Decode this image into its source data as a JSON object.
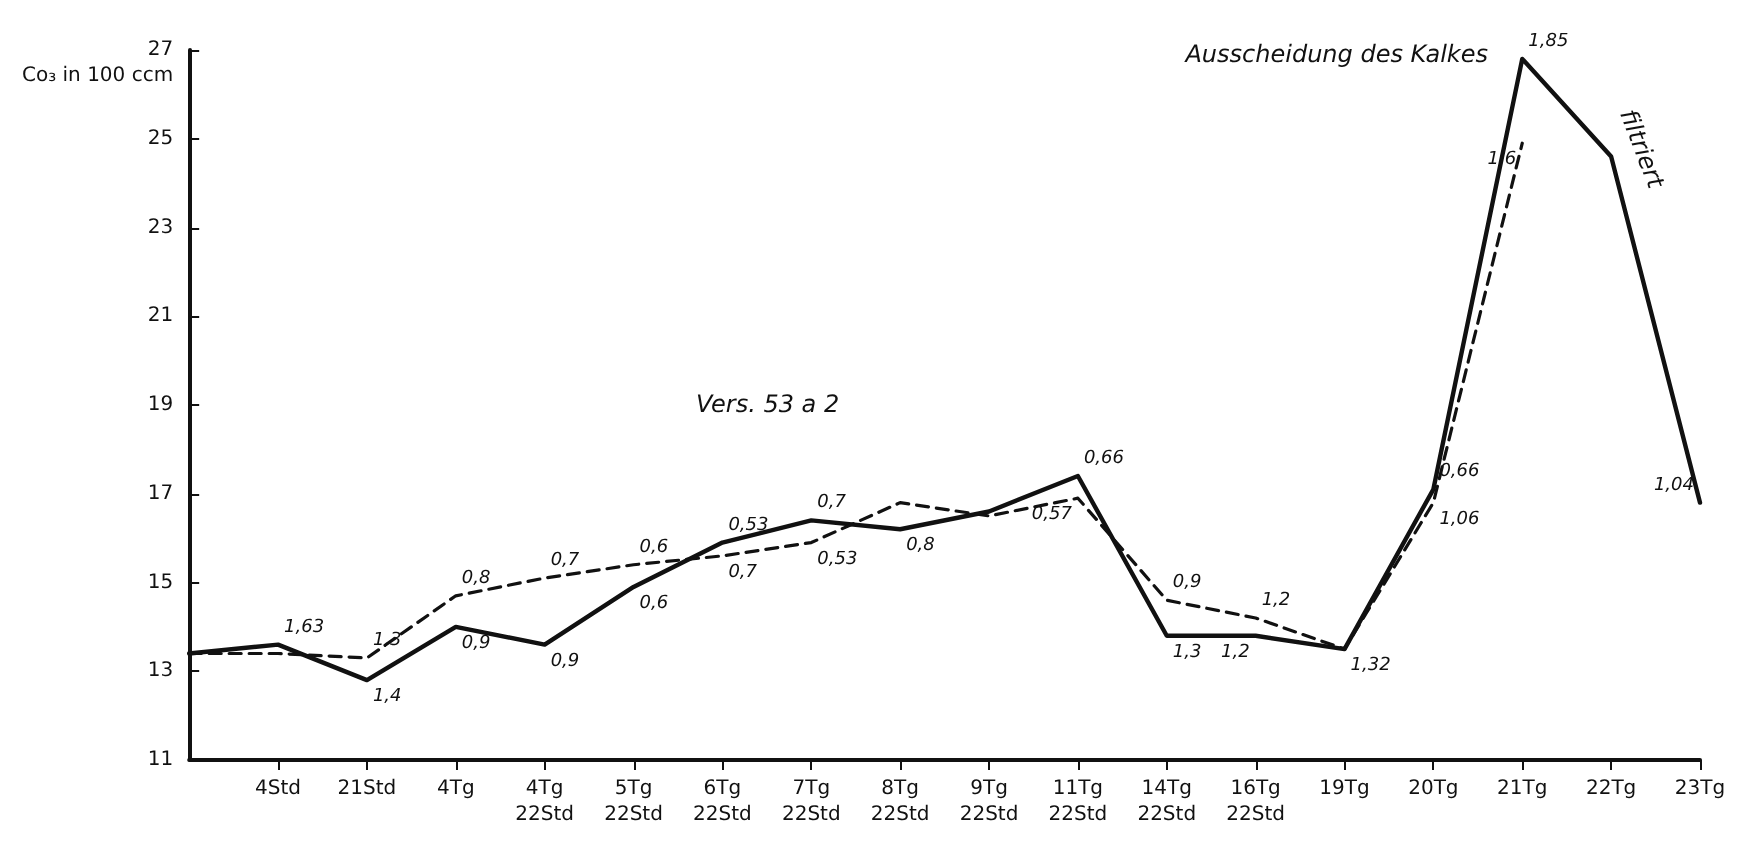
{
  "chart_data": {
    "type": "line",
    "title": "Ausscheidung des Kalkes",
    "ylabel": "Co₃ in 100 ccm",
    "annotations": [
      "Vers. 53 a 2",
      "filtriert",
      {
        "text": "1,63",
        "x": "4Std",
        "y": 13.6
      },
      {
        "text": "1,4",
        "x": "21Std",
        "y": 12.8
      },
      {
        "text": "1,3",
        "x": "21Std",
        "y": 13.3
      },
      {
        "text": "0,9",
        "x": "4Tg",
        "y": 14.0
      },
      {
        "text": "0,8",
        "x": "4Tg",
        "y": 14.7
      },
      {
        "text": "0,9",
        "x": "4Tg\n22Std",
        "y": 13.6
      },
      {
        "text": "0,7",
        "x": "4Tg\n22Std",
        "y": 15.1
      },
      {
        "text": "0,6",
        "x": "5Tg\n22Std",
        "y": 14.9
      },
      {
        "text": "0,6",
        "x": "5Tg\n22Std",
        "y": 15.4
      },
      {
        "text": "0,53",
        "x": "6Tg\n22Std",
        "y": 15.9
      },
      {
        "text": "0,7",
        "x": "6Tg\n22Std",
        "y": 15.6
      },
      {
        "text": "0,7",
        "x": "7Tg\n22Std",
        "y": 16.4
      },
      {
        "text": "0,53",
        "x": "7Tg\n22Std",
        "y": 15.9
      },
      {
        "text": "0,8",
        "x": "8Tg\n22Std",
        "y": 16.2
      },
      {
        "text": "0,66",
        "x": "11Tg\n22Std",
        "y": 17.4
      },
      {
        "text": "0,57",
        "x": "11Tg\n22Std",
        "y": 16.9
      },
      {
        "text": "1,3",
        "x": "14Tg\n22Std",
        "y": 13.8
      },
      {
        "text": "0,9",
        "x": "14Tg\n22Std",
        "y": 14.6
      },
      {
        "text": "1,2",
        "x": "16Tg\n22Std",
        "y": 13.8
      },
      {
        "text": "1,2",
        "x": "16Tg\n22Std",
        "y": 14.2
      },
      {
        "text": "1,32",
        "x": "19Tg",
        "y": 13.5
      },
      {
        "text": "0,66",
        "x": "20Tg",
        "y": 17.1
      },
      {
        "text": "1,06",
        "x": "20Tg",
        "y": 16.8
      },
      {
        "text": "1,85",
        "x": "21Tg",
        "y": 26.8
      },
      {
        "text": "1,6",
        "x": "21Tg",
        "y": 24.9
      },
      {
        "text": "1,04",
        "x": "23Tg",
        "y": 16.8
      }
    ],
    "categories": [
      null,
      "4Std",
      "21Std",
      "4Tg",
      "4Tg\n22Std",
      "5Tg\n22Std",
      "6Tg\n22Std",
      "7Tg\n22Std",
      "8Tg\n22Std",
      "9Tg\n22Std",
      "11Tg\n22Std",
      "14Tg\n22Std",
      "16Tg\n22Std",
      "19Tg",
      "20Tg",
      "21Tg",
      "22Tg",
      "23Tg"
    ],
    "series": [
      {
        "color": "#111111",
        "line_style": "solid",
        "values": [
          13.4,
          13.6,
          12.8,
          14.0,
          13.6,
          14.9,
          15.9,
          16.4,
          16.2,
          16.6,
          17.4,
          13.8,
          13.8,
          13.5,
          17.1,
          26.8,
          24.6,
          16.8
        ]
      },
      {
        "color": "#111111",
        "line_style": "dashed",
        "values": [
          13.4,
          13.4,
          13.3,
          14.7,
          15.1,
          15.4,
          15.6,
          15.9,
          16.8,
          16.5,
          16.9,
          14.6,
          14.2,
          13.5,
          16.8,
          24.9,
          null,
          null
        ]
      }
    ],
    "ylim": [
      11,
      27
    ],
    "yticks": [
      11,
      13,
      15,
      17,
      19,
      21,
      23,
      25,
      27
    ],
    "grid": false,
    "marker": "none"
  }
}
